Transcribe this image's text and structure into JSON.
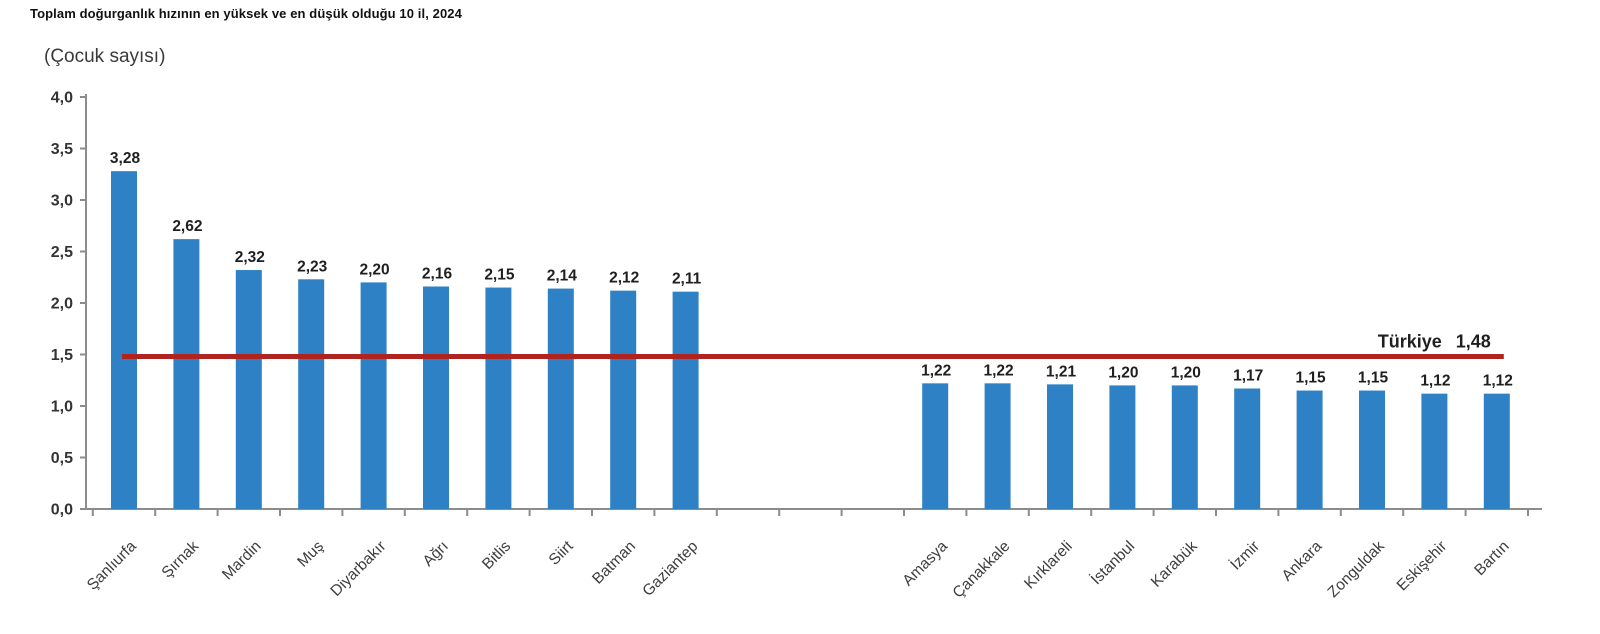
{
  "chart_data": {
    "type": "bar",
    "title": "Toplam doğurganlık hızının en yüksek ve en düşük olduğu 10 il, 2024",
    "unit_label": "(Çocuk sayısı)",
    "ylim": [
      0,
      4.0
    ],
    "ytick_step": 0.5,
    "ytick_labels": [
      "0,0",
      "0,5",
      "1,0",
      "1,5",
      "2,0",
      "2,5",
      "3,0",
      "3,5",
      "4,0"
    ],
    "grid": false,
    "legend": "none",
    "decimal_style": "comma",
    "bar_color": "#2e81c4",
    "axis_color": "#8c8c8c",
    "text_color": "#3d3d3d",
    "value_label_color": "#1f1f1f",
    "gap_slots_between_groups": 3,
    "groups": [
      {
        "name": "en-yuksek-10-il",
        "categories": [
          "Şanlıurfa",
          "Şırnak",
          "Mardin",
          "Muş",
          "Diyarbakır",
          "Ağrı",
          "Bitlis",
          "Siirt",
          "Batman",
          "Gaziantep"
        ],
        "values": [
          3.28,
          2.62,
          2.32,
          2.23,
          2.2,
          2.16,
          2.15,
          2.14,
          2.12,
          2.11
        ],
        "value_labels": [
          "3,28",
          "2,62",
          "2,32",
          "2,23",
          "2,20",
          "2,16",
          "2,15",
          "2,14",
          "2,12",
          "2,11"
        ]
      },
      {
        "name": "en-dusuk-10-il",
        "categories": [
          "Amasya",
          "Çanakkale",
          "Kırklareli",
          "İstanbul",
          "Karabük",
          "İzmir",
          "Ankara",
          "Zonguldak",
          "Eskişehir",
          "Bartın"
        ],
        "values": [
          1.22,
          1.22,
          1.21,
          1.2,
          1.2,
          1.17,
          1.15,
          1.15,
          1.12,
          1.12
        ],
        "value_labels": [
          "1,22",
          "1,22",
          "1,21",
          "1,20",
          "1,20",
          "1,17",
          "1,15",
          "1,15",
          "1,12",
          "1,12"
        ]
      }
    ],
    "reference_line": {
      "label": "Türkiye",
      "value": 1.48,
      "value_label": "1,48",
      "color": "#b0241f"
    }
  }
}
